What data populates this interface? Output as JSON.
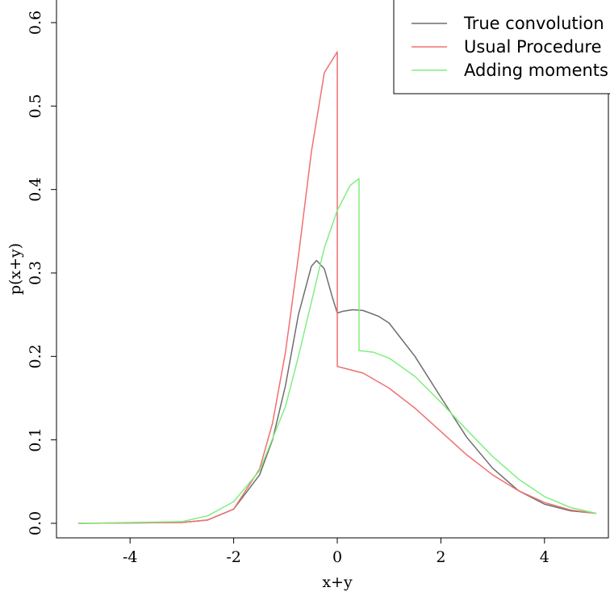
{
  "chart_data": {
    "type": "line",
    "xlabel": "x+y",
    "ylabel": "p(x+y)",
    "xlim": [
      -5,
      5
    ],
    "ylim": [
      0,
      0.6
    ],
    "x_ticks": [
      -4,
      -2,
      0,
      2,
      4
    ],
    "x_tick_labels": [
      "-4",
      "-2",
      "0",
      "2",
      "4"
    ],
    "y_ticks": [
      0.0,
      0.1,
      0.2,
      0.3,
      0.4,
      0.5,
      0.6
    ],
    "y_tick_labels": [
      "0.0",
      "0.1",
      "0.2",
      "0.3",
      "0.4",
      "0.5",
      "0.6"
    ],
    "grid": false,
    "legend": {
      "placement": "top-right"
    },
    "series": [
      {
        "name": "True convolution",
        "color": "#6e6e6e",
        "x": [
          -5,
          -3,
          -2.5,
          -2,
          -1.5,
          -1.25,
          -1,
          -0.75,
          -0.5,
          -0.4,
          -0.25,
          -0.1,
          0,
          0.1,
          0.3,
          0.5,
          0.8,
          1,
          1.5,
          2,
          2.5,
          3,
          3.5,
          4,
          4.5,
          5
        ],
        "y": [
          0.0,
          0.001,
          0.004,
          0.017,
          0.058,
          0.1,
          0.165,
          0.25,
          0.308,
          0.315,
          0.305,
          0.272,
          0.252,
          0.254,
          0.256,
          0.255,
          0.248,
          0.24,
          0.2,
          0.151,
          0.103,
          0.066,
          0.039,
          0.023,
          0.015,
          0.012
        ]
      },
      {
        "name": "Usual Procedure",
        "color": "#f07070",
        "x": [
          -5,
          -3,
          -2.5,
          -2,
          -1.5,
          -1.25,
          -1,
          -0.75,
          -0.5,
          -0.25,
          0,
          0,
          0.5,
          1,
          1.5,
          2,
          2.5,
          3,
          3.5,
          4,
          4.5,
          5
        ],
        "y": [
          0.0,
          0.001,
          0.004,
          0.017,
          0.065,
          0.12,
          0.205,
          0.32,
          0.445,
          0.54,
          0.565,
          0.188,
          0.18,
          0.162,
          0.138,
          0.11,
          0.082,
          0.058,
          0.039,
          0.025,
          0.016,
          0.012
        ],
        "steps": [
          {
            "x": 0,
            "from": 0.565,
            "to": 0.188
          }
        ]
      },
      {
        "name": "Adding moments",
        "color": "#80ee80",
        "x": [
          -5,
          -3,
          -2.5,
          -2,
          -1.5,
          -1,
          -0.75,
          -0.5,
          -0.25,
          0,
          0.25,
          0.42,
          0.42,
          0.7,
          1,
          1.5,
          2,
          2.5,
          3,
          3.5,
          4,
          4.5,
          5
        ],
        "y": [
          0.0,
          0.002,
          0.009,
          0.026,
          0.063,
          0.14,
          0.2,
          0.265,
          0.33,
          0.375,
          0.405,
          0.413,
          0.207,
          0.205,
          0.198,
          0.176,
          0.145,
          0.112,
          0.08,
          0.053,
          0.032,
          0.019,
          0.012
        ],
        "steps": [
          {
            "x": 0.42,
            "from": 0.413,
            "to": 0.207
          }
        ]
      }
    ]
  }
}
